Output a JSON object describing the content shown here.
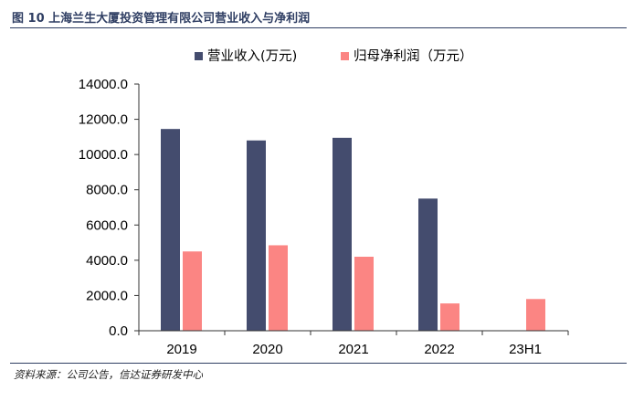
{
  "figure": {
    "title": "图 10  上海兰生大厦投资管理有限公司营业收入与净利润",
    "source": "资料来源：公司公告，信达证券研发中心"
  },
  "chart_data": {
    "type": "bar",
    "categories": [
      "2019",
      "2020",
      "2021",
      "2022",
      "23H1"
    ],
    "series": [
      {
        "name": "营业收入(万元)",
        "color": "#444c6e",
        "values": [
          11450,
          10800,
          10950,
          7500,
          null
        ]
      },
      {
        "name": "归母净利润（万元）",
        "color": "#fb8583",
        "values": [
          4500,
          4850,
          4200,
          1550,
          1800
        ]
      }
    ],
    "ylim": [
      0,
      14000
    ],
    "yticks": [
      "0.0",
      "2000.0",
      "4000.0",
      "6000.0",
      "8000.0",
      "10000.0",
      "12000.0",
      "14000.0"
    ],
    "grid": false,
    "legend_position": "top-center"
  }
}
